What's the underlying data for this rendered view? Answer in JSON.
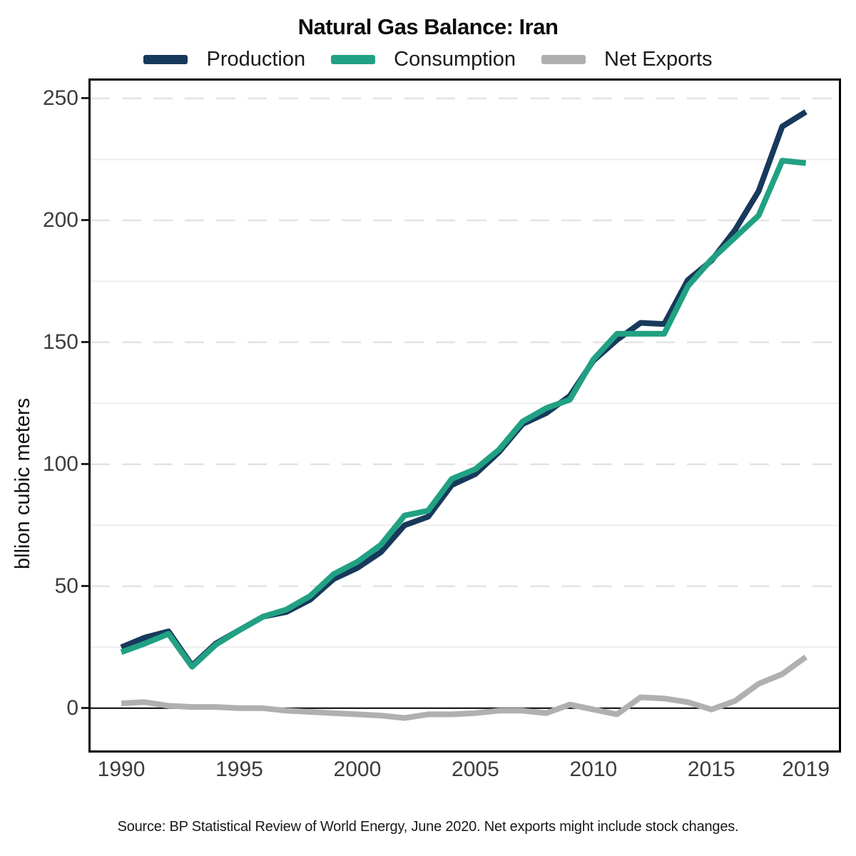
{
  "title": "Natural Gas Balance: Iran",
  "ylabel": "bllion cubic meters",
  "source": "Source: BP Statistical Review of World Energy, June 2020. Net exports might include stock changes.",
  "legend": [
    {
      "label": "Production",
      "color": "#17395b"
    },
    {
      "label": "Consumption",
      "color": "#21a183"
    },
    {
      "label": "Net Exports",
      "color": "#b0b0b0"
    }
  ],
  "colors": {
    "production": "#17395b",
    "consumption": "#21a183",
    "net_exports": "#b0b0b0",
    "minor_grid": "#ececec",
    "major_grid": "#e3e3e3",
    "zero_line": "#000000"
  },
  "chart_data": {
    "type": "line",
    "title": "Natural Gas Balance: Iran",
    "xlabel": "",
    "ylabel": "bllion cubic meters",
    "legend_position": "top",
    "x": [
      1990,
      1991,
      1992,
      1993,
      1994,
      1995,
      1996,
      1997,
      1998,
      1999,
      2000,
      2001,
      2002,
      2003,
      2004,
      2005,
      2006,
      2007,
      2008,
      2009,
      2010,
      2011,
      2012,
      2013,
      2014,
      2015,
      2016,
      2017,
      2018,
      2019
    ],
    "series": [
      {
        "name": "Production",
        "color": "#17395b",
        "values": [
          25,
          29,
          31.5,
          17.5,
          26.5,
          32,
          37.5,
          39.5,
          44.5,
          53,
          57.5,
          64,
          75,
          78.5,
          91.5,
          96,
          105,
          116.5,
          121,
          128,
          142.5,
          151,
          158,
          157.5,
          175.5,
          183.5,
          196,
          212,
          238.5,
          244.5
        ]
      },
      {
        "name": "Consumption",
        "color": "#21a183",
        "values": [
          23,
          26.5,
          30.5,
          17,
          26,
          32,
          37.5,
          40.5,
          46,
          55,
          60,
          67,
          79,
          81,
          94,
          98,
          106,
          117.5,
          123,
          126.5,
          143,
          153.5,
          153.5,
          153.5,
          173,
          184,
          193,
          202,
          224.5,
          223.5
        ]
      },
      {
        "name": "Net Exports",
        "color": "#b0b0b0",
        "values": [
          2,
          2.5,
          1,
          0.5,
          0.5,
          0,
          0,
          -1,
          -1.5,
          -2,
          -2.5,
          -3,
          -4,
          -2.5,
          -2.5,
          -2,
          -1,
          -1,
          -2,
          1.5,
          -0.5,
          -2.5,
          4.5,
          4,
          2.5,
          -0.5,
          3,
          10,
          14,
          21
        ]
      }
    ],
    "xticks": [
      1990,
      1995,
      2000,
      2005,
      2010,
      2015,
      2019
    ],
    "yticks": [
      0,
      50,
      100,
      150,
      200,
      250
    ],
    "minor_gridlines": [
      25,
      75,
      125,
      175,
      225
    ],
    "major_gridlines": [
      50,
      100,
      150,
      200,
      250
    ],
    "zero_line": 0,
    "xlim": [
      1988.7,
      2020.4
    ],
    "ylim": [
      -17.3,
      257.3
    ],
    "grid": "horizontal only"
  }
}
